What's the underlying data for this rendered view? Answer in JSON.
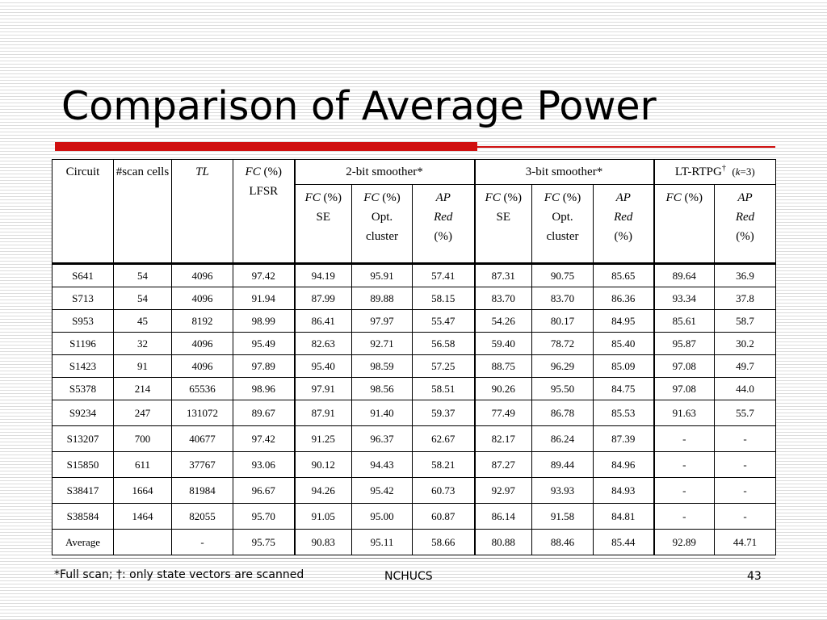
{
  "slide": {
    "title": "Comparison of Average Power",
    "footnote": "*Full scan;  †: only state vectors are scanned",
    "footer": "NCHUCS",
    "page_number": "43"
  },
  "table": {
    "headers": {
      "circuit": "Circuit",
      "scan_cells": "#scan cells",
      "tl": "TL",
      "fc_lfsr": {
        "fc": "FC",
        "pct": " (%)",
        "line2": "LFSR"
      },
      "group_2bit": "2-bit smoother*",
      "group_3bit": "3-bit smoother*",
      "group_ltrtpg": {
        "name": "LT-RTPG",
        "dagger": "†",
        "k_prefix": "(",
        "k": "k",
        "k_suffix": "=3)"
      },
      "sub_fc_se": {
        "fc": "FC",
        "pct": " (%)",
        "line2": "SE"
      },
      "sub_fc_opt": {
        "fc": "FC",
        "pct": " (%)",
        "line2": "Opt.",
        "line3": "cluster"
      },
      "sub_ap": {
        "ap": "AP",
        "red": "Red",
        "pct": "(%)"
      },
      "sub_fc": {
        "fc": "FC",
        "pct": " (%)"
      }
    },
    "rows": [
      [
        "S641",
        "54",
        "4096",
        "97.42",
        "94.19",
        "95.91",
        "57.41",
        "87.31",
        "90.75",
        "85.65",
        "89.64",
        "36.9"
      ],
      [
        "S713",
        "54",
        "4096",
        "91.94",
        "87.99",
        "89.88",
        "58.15",
        "83.70",
        "83.70",
        "86.36",
        "93.34",
        "37.8"
      ],
      [
        "S953",
        "45",
        "8192",
        "98.99",
        "86.41",
        "97.97",
        "55.47",
        "54.26",
        "80.17",
        "84.95",
        "85.61",
        "58.7"
      ],
      [
        "S1196",
        "32",
        "4096",
        "95.49",
        "82.63",
        "92.71",
        "56.58",
        "59.40",
        "78.72",
        "85.40",
        "95.87",
        "30.2"
      ],
      [
        "S1423",
        "91",
        "4096",
        "97.89",
        "95.40",
        "98.59",
        "57.25",
        "88.75",
        "96.29",
        "85.09",
        "97.08",
        "49.7"
      ],
      [
        "S5378",
        "214",
        "65536",
        "98.96",
        "97.91",
        "98.56",
        "58.51",
        "90.26",
        "95.50",
        "84.75",
        "97.08",
        "44.0"
      ],
      [
        "S9234",
        "247",
        "131072",
        "89.67",
        "87.91",
        "91.40",
        "59.37",
        "77.49",
        "86.78",
        "85.53",
        "91.63",
        "55.7"
      ],
      [
        "S13207",
        "700",
        "40677",
        "97.42",
        "91.25",
        "96.37",
        "62.67",
        "82.17",
        "86.24",
        "87.39",
        "-",
        "-"
      ],
      [
        "S15850",
        "611",
        "37767",
        "93.06",
        "90.12",
        "94.43",
        "58.21",
        "87.27",
        "89.44",
        "84.96",
        "-",
        "-"
      ],
      [
        "S38417",
        "1664",
        "81984",
        "96.67",
        "94.26",
        "95.42",
        "60.73",
        "92.97",
        "93.93",
        "84.93",
        "-",
        "-"
      ],
      [
        "S38584",
        "1464",
        "82055",
        "95.70",
        "91.05",
        "95.00",
        "60.87",
        "86.14",
        "91.58",
        "84.81",
        "-",
        "-"
      ],
      [
        "Average",
        "",
        "-",
        "95.75",
        "90.83",
        "95.11",
        "58.66",
        "80.88",
        "88.46",
        "85.44",
        "92.89",
        "44.71"
      ]
    ]
  }
}
